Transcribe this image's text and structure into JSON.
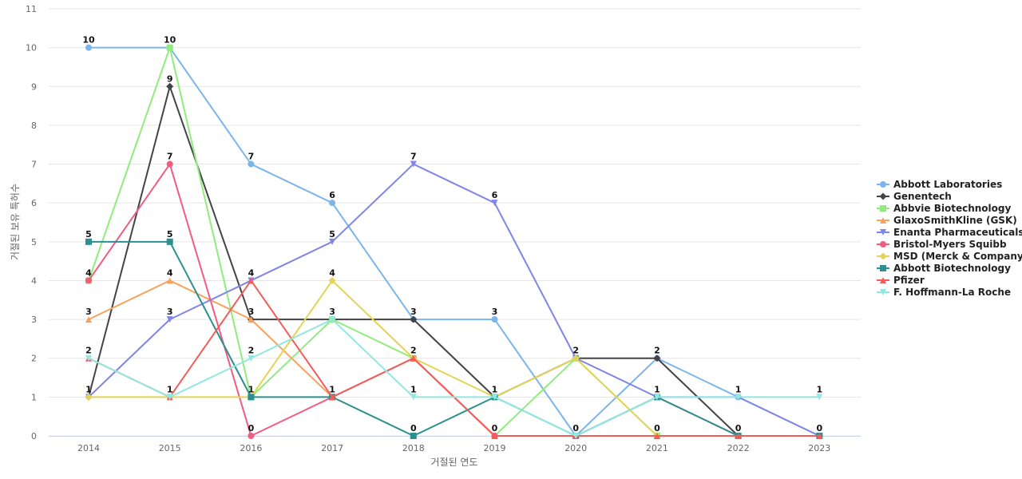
{
  "chart_data": {
    "type": "line",
    "xlabel": "거절된 연도",
    "ylabel": "거절된 보유 특허수",
    "ylim": [
      0,
      11
    ],
    "yticks": [
      "0",
      "1",
      "2",
      "3",
      "4",
      "5",
      "6",
      "7",
      "8",
      "9",
      "10",
      "11"
    ],
    "x": [
      "2014",
      "2015",
      "2016",
      "2017",
      "2018",
      "2019",
      "2020",
      "2021",
      "2022",
      "2023"
    ],
    "grid": true,
    "legend_position": "right",
    "series": [
      {
        "name": "Abbott Laboratories",
        "color": "#7cb5ec",
        "marker": "circle",
        "values": [
          10,
          10,
          7,
          6,
          3,
          3,
          0,
          2,
          1,
          0
        ]
      },
      {
        "name": "Genentech",
        "color": "#434348",
        "marker": "diamond",
        "values": [
          1,
          9,
          3,
          3,
          3,
          1,
          2,
          2,
          0,
          0
        ]
      },
      {
        "name": "Abbvie Biotechnology",
        "color": "#90ed7d",
        "marker": "square",
        "values": [
          4,
          10,
          1,
          3,
          2,
          0,
          2,
          0,
          0,
          0
        ]
      },
      {
        "name": "GlaxoSmithKline (GSK)",
        "color": "#f7a35c",
        "marker": "triangle",
        "values": [
          3,
          4,
          3,
          1,
          2,
          0,
          0,
          0,
          0,
          0
        ]
      },
      {
        "name": "Enanta Pharmaceuticals",
        "color": "#8085e9",
        "marker": "triangle-down",
        "values": [
          1,
          3,
          4,
          5,
          7,
          6,
          2,
          1,
          1,
          0
        ]
      },
      {
        "name": "Bristol-Myers Squibb",
        "color": "#f15c80",
        "marker": "circle",
        "values": [
          4,
          7,
          0,
          1,
          2,
          0,
          0,
          1,
          0,
          0
        ]
      },
      {
        "name": "MSD (Merck & Company)",
        "color": "#e4d354",
        "marker": "diamond",
        "values": [
          1,
          1,
          1,
          4,
          2,
          1,
          2,
          0,
          0,
          0
        ]
      },
      {
        "name": "Abbott Biotechnology",
        "color": "#2b908f",
        "marker": "square",
        "values": [
          5,
          5,
          1,
          1,
          0,
          1,
          0,
          1,
          0,
          0
        ]
      },
      {
        "name": "Pfizer",
        "color": "#f45b5b",
        "marker": "triangle",
        "values": [
          2,
          1,
          4,
          1,
          2,
          0,
          0,
          0,
          0,
          0
        ]
      },
      {
        "name": "F. Hoffmann-La Roche",
        "color": "#91e8e1",
        "marker": "triangle-down",
        "values": [
          2,
          1,
          2,
          3,
          1,
          1,
          0,
          1,
          1,
          1
        ]
      }
    ],
    "data_labels": [
      {
        "x": "2014",
        "value": 10
      },
      {
        "x": "2014",
        "value": 5
      },
      {
        "x": "2014",
        "value": 4
      },
      {
        "x": "2014",
        "value": 3
      },
      {
        "x": "2014",
        "value": 2
      },
      {
        "x": "2014",
        "value": 1
      },
      {
        "x": "2015",
        "value": 10
      },
      {
        "x": "2015",
        "value": 9
      },
      {
        "x": "2015",
        "value": 7
      },
      {
        "x": "2015",
        "value": 5
      },
      {
        "x": "2015",
        "value": 4
      },
      {
        "x": "2015",
        "value": 3
      },
      {
        "x": "2015",
        "value": 1
      },
      {
        "x": "2016",
        "value": 7
      },
      {
        "x": "2016",
        "value": 4
      },
      {
        "x": "2016",
        "value": 3
      },
      {
        "x": "2016",
        "value": 2
      },
      {
        "x": "2016",
        "value": 1
      },
      {
        "x": "2016",
        "value": 0
      },
      {
        "x": "2017",
        "value": 6
      },
      {
        "x": "2017",
        "value": 5
      },
      {
        "x": "2017",
        "value": 4
      },
      {
        "x": "2017",
        "value": 3
      },
      {
        "x": "2017",
        "value": 1
      },
      {
        "x": "2018",
        "value": 7
      },
      {
        "x": "2018",
        "value": 3
      },
      {
        "x": "2018",
        "value": 2
      },
      {
        "x": "2018",
        "value": 1
      },
      {
        "x": "2018",
        "value": 0
      },
      {
        "x": "2019",
        "value": 6
      },
      {
        "x": "2019",
        "value": 3
      },
      {
        "x": "2019",
        "value": 1
      },
      {
        "x": "2019",
        "value": 0
      },
      {
        "x": "2020",
        "value": 2
      },
      {
        "x": "2020",
        "value": 0
      },
      {
        "x": "2021",
        "value": 2
      },
      {
        "x": "2021",
        "value": 1
      },
      {
        "x": "2021",
        "value": 0
      },
      {
        "x": "2022",
        "value": 1
      },
      {
        "x": "2022",
        "value": 0
      },
      {
        "x": "2023",
        "value": 1
      },
      {
        "x": "2023",
        "value": 0
      }
    ]
  }
}
